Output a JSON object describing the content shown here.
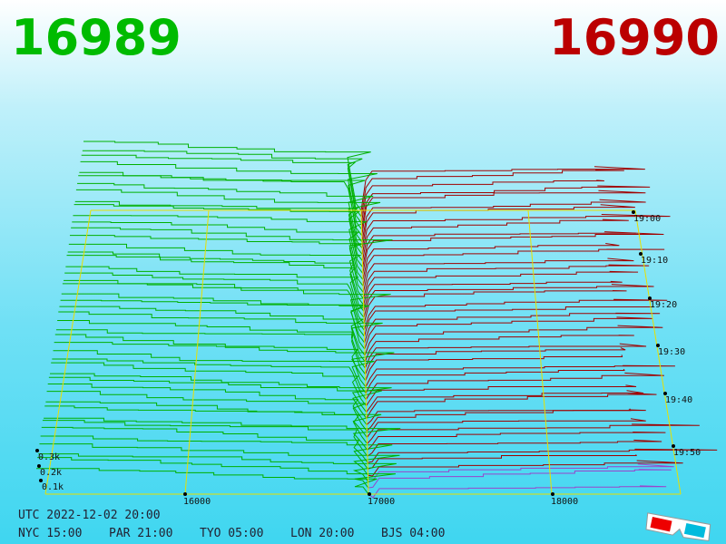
{
  "header": {
    "bid": "16989",
    "ask": "16990"
  },
  "price_axis": [
    "16000",
    "17000",
    "18000"
  ],
  "time_axis": [
    "19:00",
    "19:10",
    "19:20",
    "19:30",
    "19:40",
    "19:50"
  ],
  "depth_axis": [
    "0.3k",
    "0.2k",
    "0.1k"
  ],
  "clock": {
    "utc": "UTC 2022-12-02 20:00",
    "zones": [
      "NYC 15:00",
      "PAR 21:00",
      "TYO 05:00",
      "LON 20:00",
      "BJS 04:00"
    ]
  }
}
